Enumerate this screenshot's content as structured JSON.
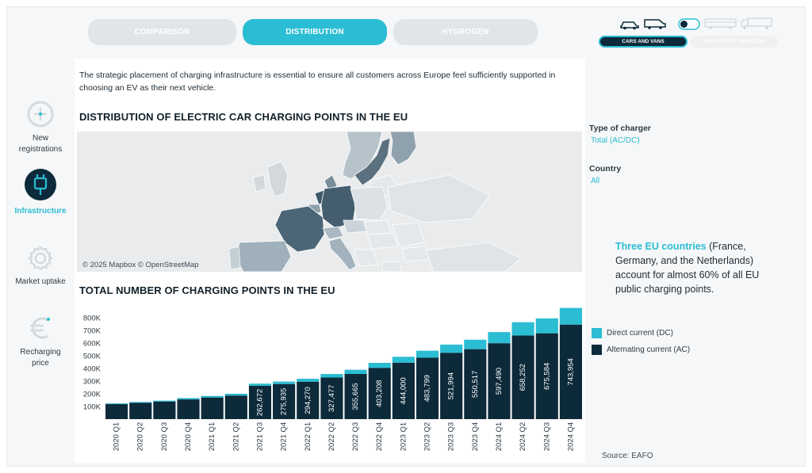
{
  "tabs": [
    {
      "label": "COMPARISON",
      "active": false
    },
    {
      "label": "DISTRIBUTION",
      "active": true
    },
    {
      "label": "HYDROGEN",
      "active": false
    }
  ],
  "vehicle_toggle": {
    "cars_label": "CARS AND VANS",
    "heavy_label": "HEAVY-DUTY VEHICLES",
    "selected": "CARS AND VANS",
    "icons": [
      "car-icon",
      "van-icon",
      "toggle-switch-icon",
      "bus-icon",
      "truck-icon"
    ]
  },
  "nav": [
    {
      "label": "New registrations",
      "icon": "plus-circle-icon",
      "active": false
    },
    {
      "label": "Infrastructure",
      "icon": "charging-plug-icon",
      "active": true
    },
    {
      "label": "Market uptake",
      "icon": "gear-icon",
      "active": false
    },
    {
      "label": "Recharging price",
      "icon": "euro-icon",
      "active": false
    }
  ],
  "intro_text": "The strategic placement of charging infrastructure is essential to ensure all customers across Europe feel sufficiently supported in choosing an EV as their next vehicle.",
  "map_section": {
    "title": "DISTRIBUTION OF ELECTRIC CAR CHARGING POINTS IN THE EU",
    "credit": "© 2025 Mapbox © OpenStreetMap"
  },
  "filters": {
    "type_label": "Type of charger",
    "type_value": "Total (AC/DC)",
    "country_label": "Country",
    "country_value": "All"
  },
  "callout": {
    "highlight": "Three EU countries",
    "rest": " (France, Germany, and the Netherlands) account for almost 60% of all EU public charging points."
  },
  "chart_section": {
    "title": "TOTAL NUMBER OF CHARGING POINTS IN THE EU"
  },
  "legend": [
    {
      "name": "Direct current (DC)",
      "color": "#2bbdd3"
    },
    {
      "name": "Alternating current (AC)",
      "color": "#0c2a3a"
    }
  ],
  "source": "Source: EAFO",
  "chart_data": {
    "type": "bar",
    "stacked": true,
    "title": "TOTAL NUMBER OF CHARGING POINTS IN THE EU",
    "categories": [
      "2020 Q1",
      "2020 Q2",
      "2020 Q3",
      "2020 Q4",
      "2021 Q1",
      "2021 Q2",
      "2021 Q3",
      "2021 Q4",
      "2022 Q1",
      "2022 Q2",
      "2022 Q3",
      "2022 Q4",
      "2023 Q1",
      "2023 Q2",
      "2023 Q3",
      "2023 Q4",
      "2024 Q1",
      "2024 Q2",
      "2024 Q3",
      "2024 Q4"
    ],
    "y_ticks": [
      "100K",
      "200K",
      "300K",
      "400K",
      "500K",
      "600K",
      "700K",
      "800K"
    ],
    "ylim": [
      0,
      880000
    ],
    "grid": false,
    "legend_position": "right",
    "series": [
      {
        "name": "Alternating current (AC)",
        "color": "#0c2a3a",
        "values": [
          118000,
          128000,
          138000,
          155000,
          170000,
          185000,
          262672,
          275935,
          294270,
          327477,
          355665,
          403208,
          444000,
          483799,
          521994,
          550517,
          597490,
          658252,
          675584,
          743954
        ],
        "labels": [
          "",
          "",
          "",
          "",
          "",
          "",
          "262,672",
          "275,935",
          "294,270",
          "327,477",
          "355,665",
          "403,208",
          "444,000",
          "483,799",
          "521,994",
          "550,517",
          "597,490",
          "658,252",
          "675,584",
          "743,954"
        ]
      },
      {
        "name": "Direct current (DC)",
        "color": "#2bbdd3",
        "values": [
          6000,
          7000,
          8000,
          11000,
          13000,
          15000,
          17000,
          20000,
          24000,
          28000,
          33000,
          40000,
          47000,
          55000,
          65000,
          75000,
          88000,
          105000,
          118000,
          132000
        ]
      }
    ]
  }
}
